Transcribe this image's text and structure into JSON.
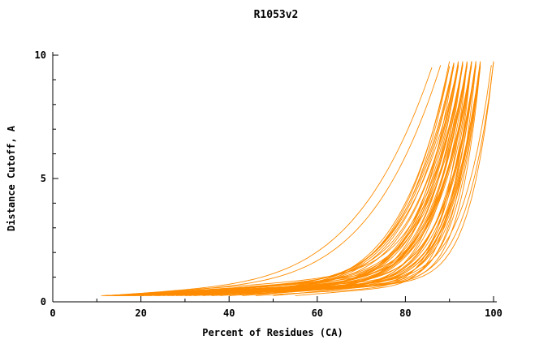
{
  "chart_data": {
    "type": "line",
    "title": "R1053v2",
    "xlabel": "Percent of Residues (CA)",
    "ylabel": "Distance Cutoff, A",
    "xlim": [
      0,
      100
    ],
    "ylim": [
      0,
      10
    ],
    "x_major_ticks": [
      0,
      20,
      40,
      60,
      80,
      100
    ],
    "x_minor_ticks": [
      10,
      30,
      50,
      70,
      90
    ],
    "y_major_ticks": [
      0,
      5,
      10
    ],
    "y_minor_ticks": [
      1,
      2,
      3,
      4,
      6,
      7,
      8,
      9
    ],
    "grid": false,
    "legend": "none",
    "line_color": "#ff8c00",
    "y_bottom": 0.25,
    "curve_model": "Each model curve is monotone: x(t)=x0+(x1-x0)*t ; y(t)=y_bottom + c*t + (y_top - y_bottom - c)*t^a , t in [0,1]. Curves start near (x0, 0.25 A), run nearly flat, then rise steeply to ~9.5-9.75 A near x1 percent of residues.",
    "series_format": [
      "x0",
      "x1",
      "a",
      "c",
      "y_top"
    ],
    "series": [
      [
        11,
        93,
        9,
        0.5,
        9.6
      ],
      [
        11.5,
        95,
        10,
        0.7,
        9.7
      ],
      [
        12,
        91,
        8,
        0.6,
        9.55
      ],
      [
        12,
        96,
        11,
        0.4,
        9.75
      ],
      [
        12.5,
        94,
        9,
        0.9,
        9.65
      ],
      [
        13,
        92,
        7,
        0.5,
        9.6
      ],
      [
        13,
        97,
        12,
        0.6,
        9.7
      ],
      [
        13.5,
        90,
        8,
        0.8,
        9.55
      ],
      [
        14,
        95,
        10,
        0.5,
        9.75
      ],
      [
        14,
        93,
        9,
        1.1,
        9.65
      ],
      [
        14.5,
        96,
        11,
        0.7,
        9.6
      ],
      [
        15,
        91,
        7,
        0.6,
        9.7
      ],
      [
        15,
        94,
        9,
        0.9,
        9.55
      ],
      [
        15.5,
        97,
        12,
        0.5,
        9.75
      ],
      [
        16,
        92,
        8,
        0.7,
        9.65
      ],
      [
        16,
        95,
        10,
        1.0,
        9.6
      ],
      [
        16.5,
        93,
        9,
        0.6,
        9.7
      ],
      [
        17,
        96,
        11,
        0.8,
        9.55
      ],
      [
        17,
        90,
        7,
        0.5,
        9.75
      ],
      [
        17.5,
        94,
        10,
        0.7,
        9.65
      ],
      [
        18,
        97,
        12,
        0.6,
        9.6
      ],
      [
        18,
        92,
        8,
        1.0,
        9.7
      ],
      [
        18.5,
        95,
        9,
        0.5,
        9.55
      ],
      [
        19,
        93,
        10,
        0.8,
        9.75
      ],
      [
        19.5,
        96,
        11,
        0.6,
        9.65
      ],
      [
        20,
        91,
        7,
        0.9,
        9.6
      ],
      [
        20,
        94,
        9,
        0.5,
        9.7
      ],
      [
        21,
        97,
        13,
        0.7,
        9.55
      ],
      [
        21.5,
        92,
        8,
        0.6,
        9.75
      ],
      [
        22,
        95,
        10,
        1.0,
        9.65
      ],
      [
        23,
        93,
        9,
        0.5,
        9.6
      ],
      [
        23.5,
        96,
        12,
        0.8,
        9.7
      ],
      [
        24,
        90,
        6,
        0.6,
        9.55
      ],
      [
        25,
        94,
        9,
        0.7,
        9.75
      ],
      [
        26,
        97,
        11,
        0.5,
        9.65
      ],
      [
        27,
        92,
        8,
        0.9,
        9.6
      ],
      [
        28,
        95,
        10,
        0.6,
        9.7
      ],
      [
        29,
        93,
        7,
        0.7,
        9.55
      ],
      [
        30,
        96,
        11,
        0.5,
        9.75
      ],
      [
        31,
        91,
        8,
        0.8,
        9.65
      ],
      [
        32,
        94,
        9,
        0.6,
        9.6
      ],
      [
        34,
        97,
        12,
        0.7,
        9.7
      ],
      [
        36,
        92,
        7,
        0.5,
        9.55
      ],
      [
        38,
        95,
        10,
        0.8,
        9.75
      ],
      [
        40,
        93,
        8,
        0.6,
        9.65
      ],
      [
        43,
        96,
        11,
        0.7,
        9.6
      ],
      [
        46,
        94,
        9,
        0.5,
        9.7
      ],
      [
        50,
        97,
        10,
        0.8,
        9.55
      ],
      [
        55,
        95,
        8,
        0.6,
        9.75
      ],
      [
        12,
        88,
        5,
        0.9,
        9.6
      ],
      [
        13,
        86,
        4.5,
        1.0,
        9.5
      ],
      [
        14,
        100,
        14,
        0.5,
        9.7
      ],
      [
        16,
        99.5,
        13,
        0.7,
        9.6
      ],
      [
        20,
        100,
        15,
        0.6,
        9.75
      ]
    ]
  }
}
